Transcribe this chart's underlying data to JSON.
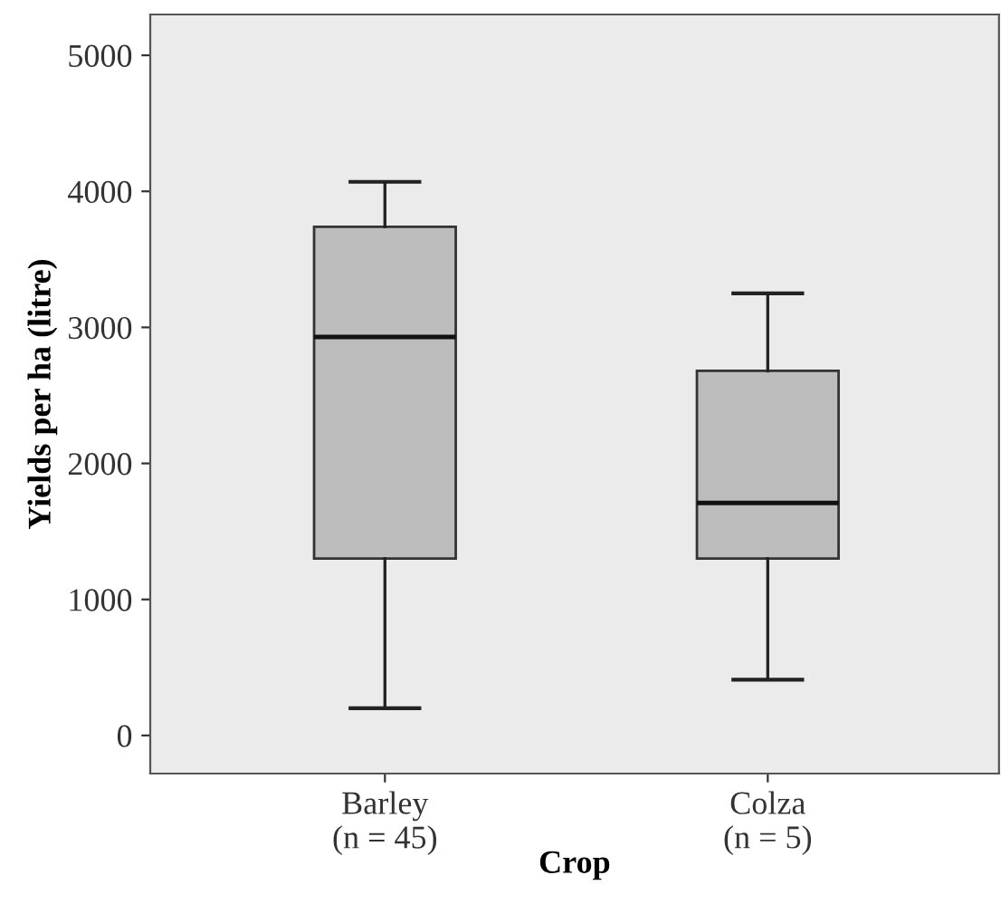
{
  "chart_data": {
    "type": "box",
    "xlabel": "Crop",
    "ylabel": "Yields per ha (litre)",
    "categories": [
      "Barley\n(n = 45)",
      "Colza\n(n = 5)"
    ],
    "boxes": [
      {
        "low": 200,
        "q1": 1300,
        "median": 2930,
        "q3": 3740,
        "high": 4070
      },
      {
        "low": 410,
        "q1": 1300,
        "median": 1710,
        "q3": 2680,
        "high": 3250
      }
    ],
    "color": "#bdbdbd",
    "ylim": [
      -280,
      5300
    ],
    "yticks": [
      0,
      1000,
      2000,
      3000,
      4000,
      5000
    ],
    "grid": false
  }
}
